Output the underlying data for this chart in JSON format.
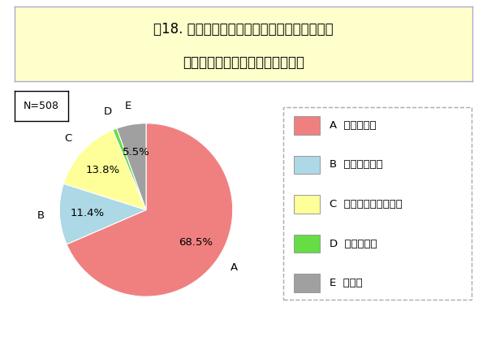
{
  "title_line1": "問18. あなたは、日本の政治にマニフェストは",
  "title_line2": "必要だと思いますか【単数回答】",
  "n_label": "N=508",
  "labels": [
    "A",
    "B",
    "C",
    "D",
    "E"
  ],
  "values": [
    68.5,
    11.4,
    13.8,
    0.8,
    5.5
  ],
  "colors": [
    "#F08080",
    "#ADD8E6",
    "#FFFF99",
    "#66DD44",
    "#A0A0A0"
  ],
  "legend_labels": [
    "A  必要である",
    "B  必要ではない",
    "C  どちらともいえない",
    "D  わからない",
    "E  無回答"
  ],
  "background_color": "#FFFFFF",
  "title_bg_color": "#FFFFCC",
  "title_border_color": "#AAAACC",
  "startangle": 90,
  "label_fontsize": 9.5,
  "pct_fontsize": 9.5,
  "legend_fontsize": 9.5,
  "title_fontsize": 12,
  "n_fontsize": 9
}
